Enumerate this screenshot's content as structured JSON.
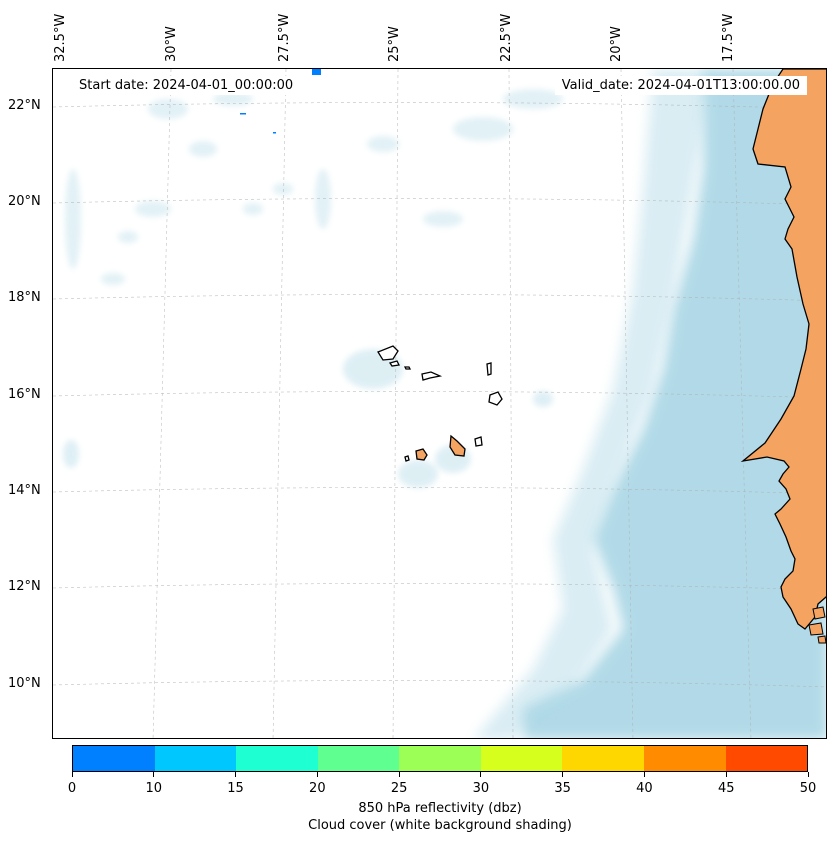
{
  "map": {
    "lon_labels": [
      "32.5°W",
      "30°W",
      "27.5°W",
      "25°W",
      "22.5°W",
      "20°W",
      "17.5°W"
    ],
    "lat_labels": [
      "22°N",
      "20°N",
      "18°N",
      "16°N",
      "14°N",
      "12°N",
      "10°N"
    ],
    "start_date": "Start date: 2024-04-01_00:00:00",
    "valid_date": "Valid_date: 2024-04-01T13:00:00.00",
    "land_color": "#f4a460",
    "cloud_color": "#add8e6",
    "coastline_color": "#000000"
  },
  "colorbar": {
    "tick_labels": [
      "0",
      "10",
      "15",
      "20",
      "25",
      "30",
      "35",
      "40",
      "45",
      "50"
    ],
    "colors": [
      "#0080ff",
      "#00c8ff",
      "#1effd2",
      "#5fff90",
      "#9bff55",
      "#d6ff1e",
      "#ffd700",
      "#ff8c00",
      "#ff4a00"
    ],
    "label_line1": "850 hPa reflectivity (dbz)",
    "label_line2": "Cloud cover (white background shading)"
  }
}
